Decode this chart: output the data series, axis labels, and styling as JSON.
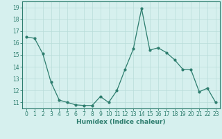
{
  "x": [
    0,
    1,
    2,
    3,
    4,
    5,
    6,
    7,
    8,
    9,
    10,
    11,
    12,
    13,
    14,
    15,
    16,
    17,
    18,
    19,
    20,
    21,
    22,
    23
  ],
  "y": [
    16.5,
    16.4,
    15.1,
    12.7,
    11.2,
    11.0,
    10.8,
    10.75,
    10.75,
    11.5,
    11.0,
    12.0,
    13.8,
    15.5,
    18.9,
    15.4,
    15.6,
    15.2,
    14.6,
    13.8,
    13.75,
    11.9,
    12.2,
    11.0
  ],
  "line_color": "#2d7d6e",
  "marker": "o",
  "markersize": 2.0,
  "linewidth": 0.9,
  "bg_color": "#d6f0ee",
  "grid_color": "#b8ddd9",
  "xlabel": "Humidex (Indice chaleur)",
  "ylim": [
    10.5,
    19.5
  ],
  "xlim": [
    -0.5,
    23.5
  ],
  "yticks": [
    11,
    12,
    13,
    14,
    15,
    16,
    17,
    18,
    19
  ],
  "xticks": [
    0,
    1,
    2,
    3,
    4,
    5,
    6,
    7,
    8,
    9,
    10,
    11,
    12,
    13,
    14,
    15,
    16,
    17,
    18,
    19,
    20,
    21,
    22,
    23
  ],
  "xlabel_fontsize": 6.5,
  "tick_fontsize": 5.5,
  "tick_color": "#2d7d6e",
  "axis_color": "#2d7d6e"
}
